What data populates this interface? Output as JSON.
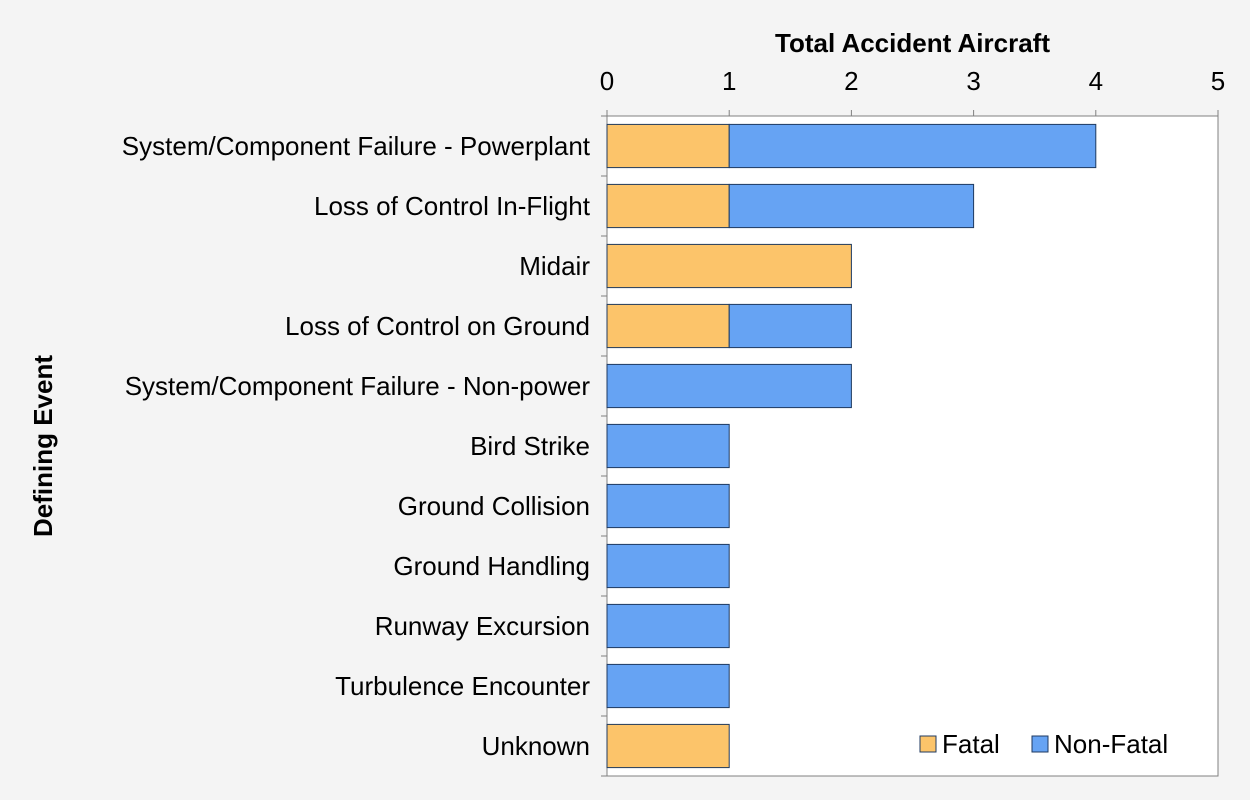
{
  "chart_data": {
    "type": "bar",
    "orientation": "horizontal",
    "stacked": true,
    "xlabel": "Total Accident Aircraft",
    "ylabel": "Defining Event",
    "xlim": [
      0,
      5
    ],
    "xticks": [
      "0",
      "1",
      "2",
      "3",
      "4",
      "5"
    ],
    "grid": false,
    "legend_position": "bottom-right",
    "categories": [
      "System/Component Failure - Powerplant",
      "Loss of Control In-Flight",
      "Midair",
      "Loss of Control on Ground",
      "System/Component Failure - Non-power",
      "Bird Strike",
      "Ground Collision",
      "Ground Handling",
      "Runway Excursion",
      "Turbulence Encounter",
      "Unknown"
    ],
    "series": [
      {
        "name": "Fatal",
        "color": "#fcc46a",
        "values": [
          1,
          1,
          2,
          1,
          0,
          0,
          0,
          0,
          0,
          0,
          1
        ]
      },
      {
        "name": "Non-Fatal",
        "color": "#66a3f3",
        "values": [
          3,
          2,
          0,
          1,
          2,
          1,
          1,
          1,
          1,
          1,
          0
        ]
      }
    ]
  }
}
